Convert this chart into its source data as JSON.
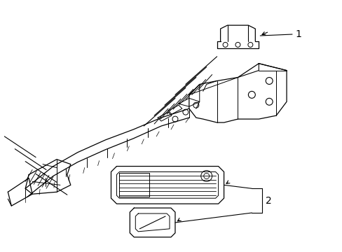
{
  "background_color": "#ffffff",
  "line_color": "#000000",
  "label_1": "1",
  "label_2": "2",
  "fig_width": 4.89,
  "fig_height": 3.6,
  "dpi": 100
}
